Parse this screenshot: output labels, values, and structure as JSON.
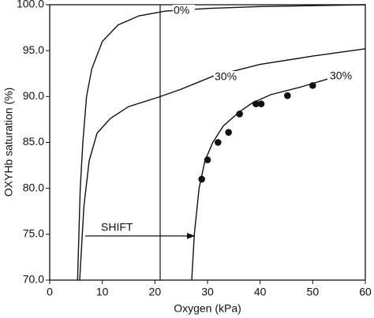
{
  "chart_data": {
    "type": "line",
    "xlabel": "Oxygen (kPa)",
    "ylabel": "OXYHb saturation (%)",
    "xlim": [
      0,
      60
    ],
    "xticks": [
      0,
      10,
      20,
      30,
      40,
      50,
      60
    ],
    "ylim": [
      70,
      100
    ],
    "yticks": [
      {
        "value": 70,
        "label": "70.0"
      },
      {
        "value": 75,
        "label": "75.0"
      },
      {
        "value": 80,
        "label": "80.0"
      },
      {
        "value": 85,
        "label": "85.0"
      },
      {
        "value": 90,
        "label": "90.0"
      },
      {
        "value": 95,
        "label": "95.0"
      },
      {
        "value": 100,
        "label": "100.0"
      }
    ],
    "vline_x": 21,
    "annotation": "SHIFT",
    "series": [
      {
        "name": "0%",
        "color": "#111111",
        "x": [
          5.3,
          5.8,
          6.3,
          7,
          8,
          10,
          13,
          17,
          22,
          30,
          40,
          60
        ],
        "values": [
          70,
          80,
          85,
          90,
          93,
          96,
          97.8,
          98.8,
          99.3,
          99.6,
          99.8,
          100
        ]
      },
      {
        "name": "30%",
        "color": "#111111",
        "x": [
          5.7,
          6.5,
          7.5,
          9,
          11.5,
          15,
          20.5,
          25,
          31,
          40,
          50,
          60
        ],
        "values": [
          70,
          78,
          83,
          86,
          87.6,
          88.9,
          89.9,
          90.8,
          92.2,
          93.5,
          94.4,
          95.2
        ]
      },
      {
        "name": "30%",
        "color": "#111111",
        "x": [
          27,
          27.5,
          28.4,
          29.5,
          31,
          33,
          36,
          38.5,
          42,
          47.5,
          52.8
        ],
        "values": [
          70,
          75,
          80,
          83,
          85,
          86.8,
          88.3,
          89.3,
          90.2,
          91,
          91.9
        ]
      },
      {
        "type": "scatter",
        "color": "#111111",
        "x": [
          28.9,
          30,
          32,
          34,
          36.1,
          39.2,
          40.2,
          45.2,
          50
        ],
        "values": [
          81,
          83.1,
          85,
          86.1,
          88.1,
          89.2,
          89.2,
          90.1,
          91.2
        ]
      }
    ]
  }
}
